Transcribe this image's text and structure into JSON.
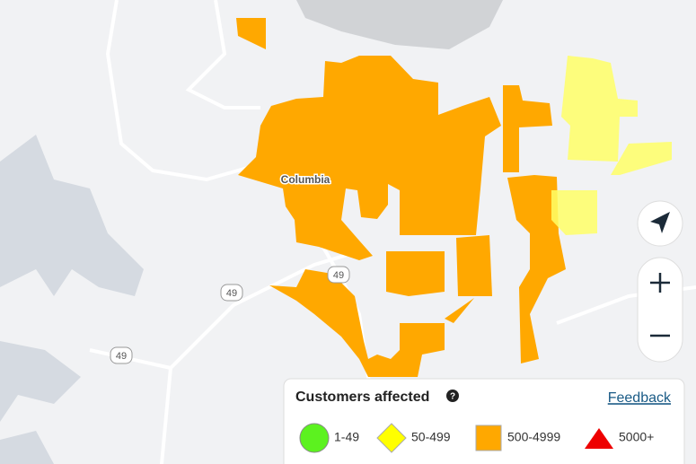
{
  "map": {
    "place_label": "Columbia",
    "route_shields": [
      "49",
      "49",
      "49"
    ],
    "legend": {
      "title": "Customers affected",
      "help": "?",
      "link": "Feedback",
      "items": [
        {
          "label": "1-49",
          "color": "#5cf21f",
          "shape": "circle"
        },
        {
          "label": "50-499",
          "color": "#ffff00",
          "shape": "diamond"
        },
        {
          "label": "500-4999",
          "color": "#ffa800",
          "shape": "square"
        },
        {
          "label": "5000+",
          "color": "#ee0000",
          "shape": "triangle"
        }
      ]
    }
  }
}
